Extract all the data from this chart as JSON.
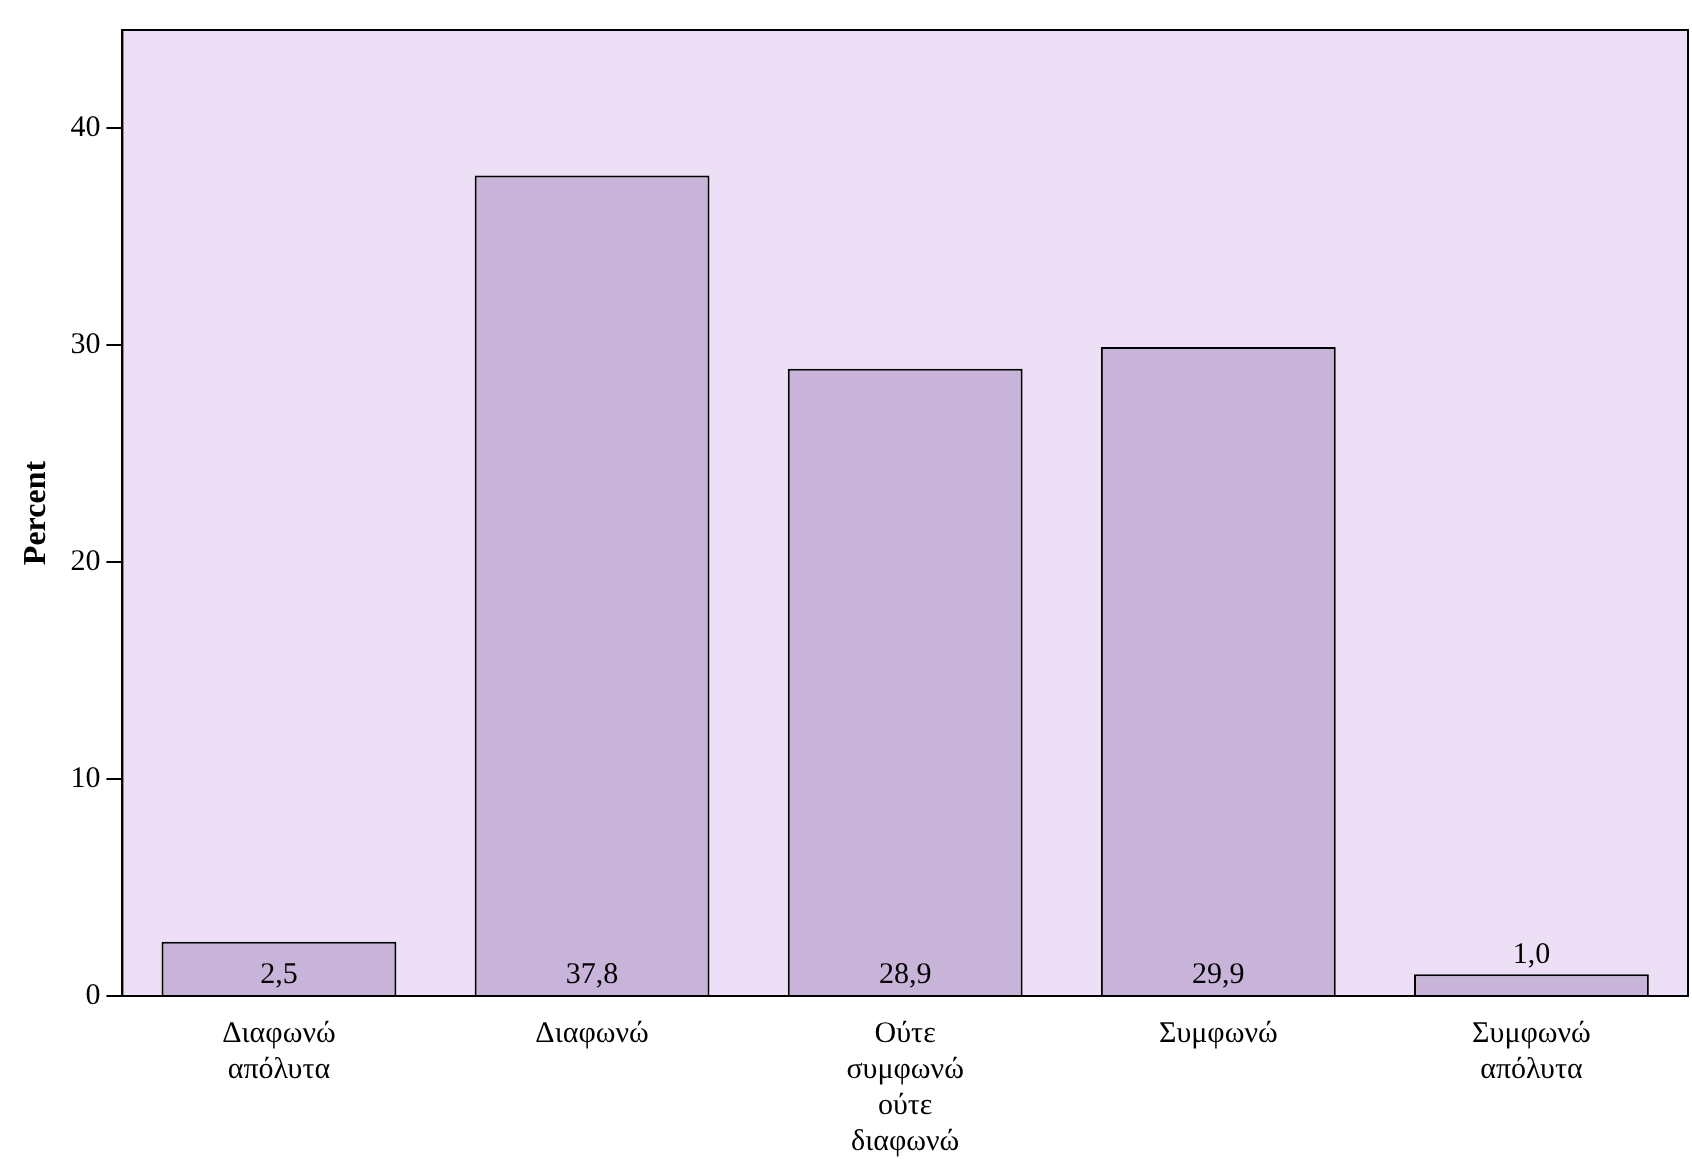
{
  "chart_data": {
    "type": "bar",
    "ylabel": "Percent",
    "categories": [
      "Διαφωνώ απόλυτα",
      "Διαφωνώ",
      "Ούτε συμφωνώ ούτε διαφωνώ",
      "Συμφωνώ",
      "Συμφωνώ απόλυτα"
    ],
    "values": [
      2.5,
      37.8,
      28.9,
      29.9,
      1.0
    ],
    "value_labels": [
      "2,5",
      "37,8",
      "28,9",
      "29,9",
      "1,0"
    ],
    "color": "#c8b3d9",
    "ylim": [
      0,
      44.5
    ],
    "yticks": [
      0,
      10,
      20,
      30,
      40
    ],
    "grid": false,
    "legend": false
  }
}
